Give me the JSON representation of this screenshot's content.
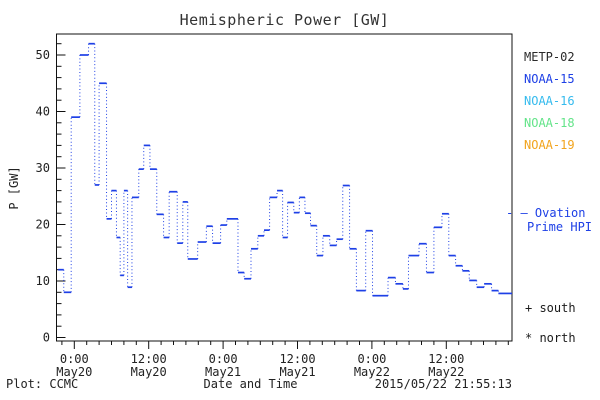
{
  "title": "Hemispheric Power [GW]",
  "y_axis_label": "P [GW]",
  "footer": {
    "plot_credit": "Plot: CCMC",
    "x_axis_title": "Date and Time",
    "timestamp": "2015/05/22 21:55:13"
  },
  "satellites": [
    {
      "label": "METP-02",
      "color": "#2a2a2a"
    },
    {
      "label": "NOAA-15",
      "color": "#1e40e6"
    },
    {
      "label": "NOAA-16",
      "color": "#35bbee"
    },
    {
      "label": "NOAA-18",
      "color": "#63e489"
    },
    {
      "label": "NOAA-19",
      "color": "#f2a41d"
    }
  ],
  "ovation_legend": {
    "marker": "- —",
    "line1": "Ovation",
    "line2": "Prime HPI",
    "color": "#1e40e6"
  },
  "hemisphere_legend": [
    {
      "symbol": "+",
      "label": "south"
    },
    {
      "symbol": "*",
      "label": "north"
    }
  ],
  "chart_data": {
    "type": "line",
    "title": "Hemispheric Power [GW]",
    "xlabel": "Date and Time",
    "ylabel": "P [GW]",
    "x_unit": "hours since 2015-05-20 00:00 UT",
    "xlim": [
      -2.87,
      70.6
    ],
    "ylim": [
      0,
      54
    ],
    "grid": false,
    "legend_position": "right",
    "x_major_ticks": [
      {
        "hours": 0,
        "time": "0:00",
        "date": "May20"
      },
      {
        "hours": 12,
        "time": "12:00",
        "date": "May20"
      },
      {
        "hours": 24,
        "time": "0:00",
        "date": "May21"
      },
      {
        "hours": 36,
        "time": "12:00",
        "date": "May21"
      },
      {
        "hours": 48,
        "time": "0:00",
        "date": "May22"
      },
      {
        "hours": 60,
        "time": "12:00",
        "date": "May22"
      }
    ],
    "x_minor_step_hours": 2,
    "y_major_ticks": [
      0,
      10,
      20,
      30,
      40,
      50
    ],
    "y_minor_step": 2,
    "series": [
      {
        "name": "NOAA-15 Hemispheric Power Index",
        "color": "#1e40e6",
        "style": "steps-with-dotted-risers",
        "points": [
          [
            -2.6,
            12
          ],
          [
            -1.7,
            8
          ],
          [
            -0.5,
            39
          ],
          [
            0.9,
            50
          ],
          [
            2.3,
            52
          ],
          [
            3.3,
            27
          ],
          [
            4.0,
            45
          ],
          [
            5.2,
            21
          ],
          [
            6.0,
            26
          ],
          [
            6.8,
            17.7
          ],
          [
            7.4,
            11
          ],
          [
            8.0,
            26
          ],
          [
            8.6,
            8.9
          ],
          [
            9.3,
            24.8
          ],
          [
            10.4,
            29.8
          ],
          [
            11.2,
            34
          ],
          [
            12.2,
            29.8
          ],
          [
            13.3,
            21.8
          ],
          [
            14.4,
            17.7
          ],
          [
            15.3,
            25.8
          ],
          [
            16.6,
            16.7
          ],
          [
            17.5,
            24
          ],
          [
            18.3,
            13.9
          ],
          [
            19.9,
            16.9
          ],
          [
            21.3,
            19.7
          ],
          [
            22.3,
            16.7
          ],
          [
            23.6,
            19.9
          ],
          [
            24.6,
            21
          ],
          [
            26.4,
            11.5
          ],
          [
            27.4,
            10.4
          ],
          [
            28.5,
            15.7
          ],
          [
            29.6,
            18
          ],
          [
            30.6,
            19
          ],
          [
            31.5,
            24.8
          ],
          [
            32.7,
            26
          ],
          [
            33.6,
            17.7
          ],
          [
            34.4,
            23.9
          ],
          [
            35.4,
            22.1
          ],
          [
            36.3,
            24.8
          ],
          [
            37.2,
            22
          ],
          [
            38.1,
            19.8
          ],
          [
            39.1,
            14.5
          ],
          [
            40.1,
            18
          ],
          [
            41.2,
            16.3
          ],
          [
            42.3,
            17.4
          ],
          [
            43.3,
            26.9
          ],
          [
            44.4,
            15.7
          ],
          [
            45.5,
            8.3
          ],
          [
            47.0,
            18.9
          ],
          [
            48.1,
            7.4
          ],
          [
            50.6,
            10.6
          ],
          [
            51.8,
            9.5
          ],
          [
            53.0,
            8.6
          ],
          [
            53.9,
            14.5
          ],
          [
            55.6,
            16.6
          ],
          [
            56.8,
            11.5
          ],
          [
            58.0,
            19.5
          ],
          [
            59.3,
            21.9
          ],
          [
            60.4,
            14.5
          ],
          [
            61.5,
            12.7
          ],
          [
            62.6,
            11.8
          ],
          [
            63.7,
            10.1
          ],
          [
            64.9,
            8.9
          ],
          [
            66.1,
            9.5
          ],
          [
            67.3,
            8.3
          ],
          [
            68.4,
            7.8
          ]
        ]
      }
    ]
  }
}
